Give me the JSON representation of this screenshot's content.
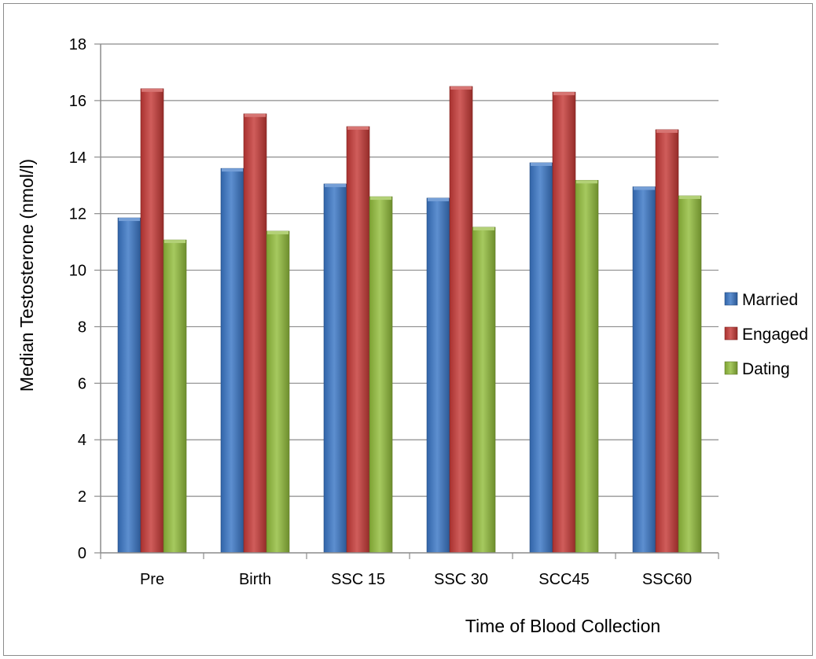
{
  "chart_data": {
    "type": "bar",
    "title": "",
    "xlabel": "Time of Blood Collection",
    "ylabel": "Median Testosterone (nmol/l)",
    "categories": [
      "Pre",
      "Birth",
      "SSC 15",
      "SSC 30",
      "SCC45",
      "SSC60"
    ],
    "series": [
      {
        "name": "Married",
        "color": "#3a76c6",
        "values": [
          11.85,
          13.6,
          13.05,
          12.55,
          13.8,
          12.95
        ]
      },
      {
        "name": "Engaged",
        "color": "#c63a37",
        "values": [
          16.42,
          15.53,
          15.08,
          16.5,
          16.3,
          14.97
        ]
      },
      {
        "name": "Dating",
        "color": "#93bd3c",
        "values": [
          11.07,
          11.38,
          12.6,
          11.52,
          13.18,
          12.63
        ]
      }
    ],
    "ylim": [
      0,
      18
    ],
    "yticks": [
      "0",
      "2",
      "4",
      "6",
      "8",
      "10",
      "12",
      "14",
      "16",
      "18"
    ],
    "grid": true,
    "legend_position": "right"
  }
}
